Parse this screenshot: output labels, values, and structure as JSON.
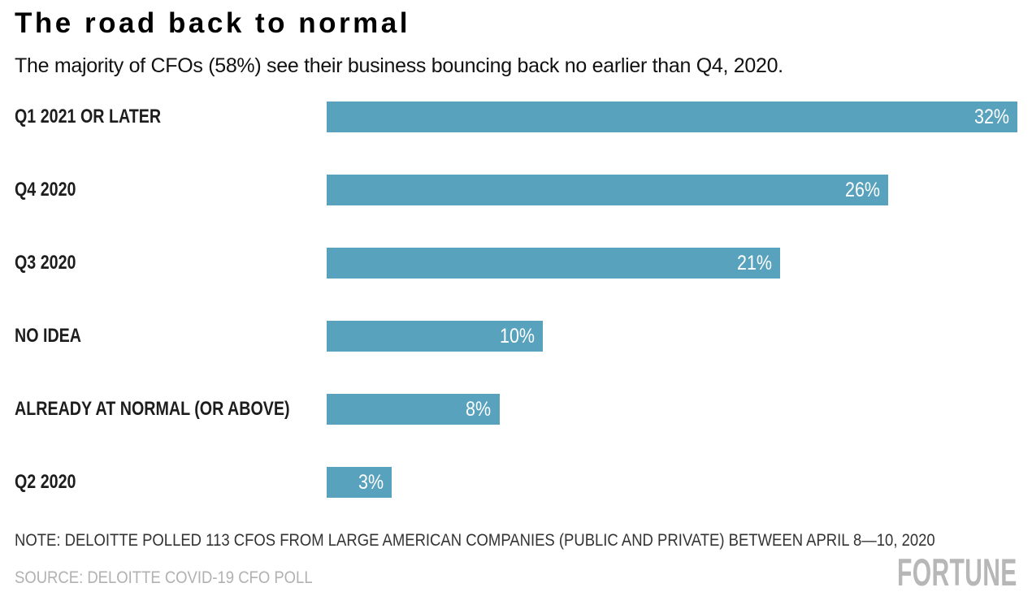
{
  "header": {
    "title": "The road back to normal",
    "subtitle": "The majority of CFOs (58%) see their business bouncing back no earlier than Q4, 2020."
  },
  "chart_data": {
    "type": "bar",
    "orientation": "horizontal",
    "title": "The road back to normal",
    "subtitle": "The majority of CFOs (58%) see their business bouncing back no earlier than Q4, 2020.",
    "categories": [
      "Q1 2021 OR LATER",
      "Q4 2020",
      "Q3 2020",
      "NO IDEA",
      "ALREADY AT NORMAL (OR ABOVE)",
      "Q2 2020"
    ],
    "values": [
      32,
      26,
      21,
      10,
      8,
      3
    ],
    "value_labels": [
      "32%",
      "26%",
      "21%",
      "10%",
      "8%",
      "3%"
    ],
    "xlim": [
      0,
      32
    ],
    "grid": "off",
    "legend": "none",
    "value_label_position": "inside-end",
    "bar_color": "#58a2bd",
    "value_label_color": "#ffffff"
  },
  "footer": {
    "note": "NOTE: DELOITTE POLLED 113 CFOS FROM LARGE AMERICAN COMPANIES (PUBLIC AND PRIVATE) BETWEEN APRIL 8—10, 2020",
    "source": "SOURCE: DELOITTE COVID-19 CFO POLL",
    "brand": "FORTUNE"
  }
}
